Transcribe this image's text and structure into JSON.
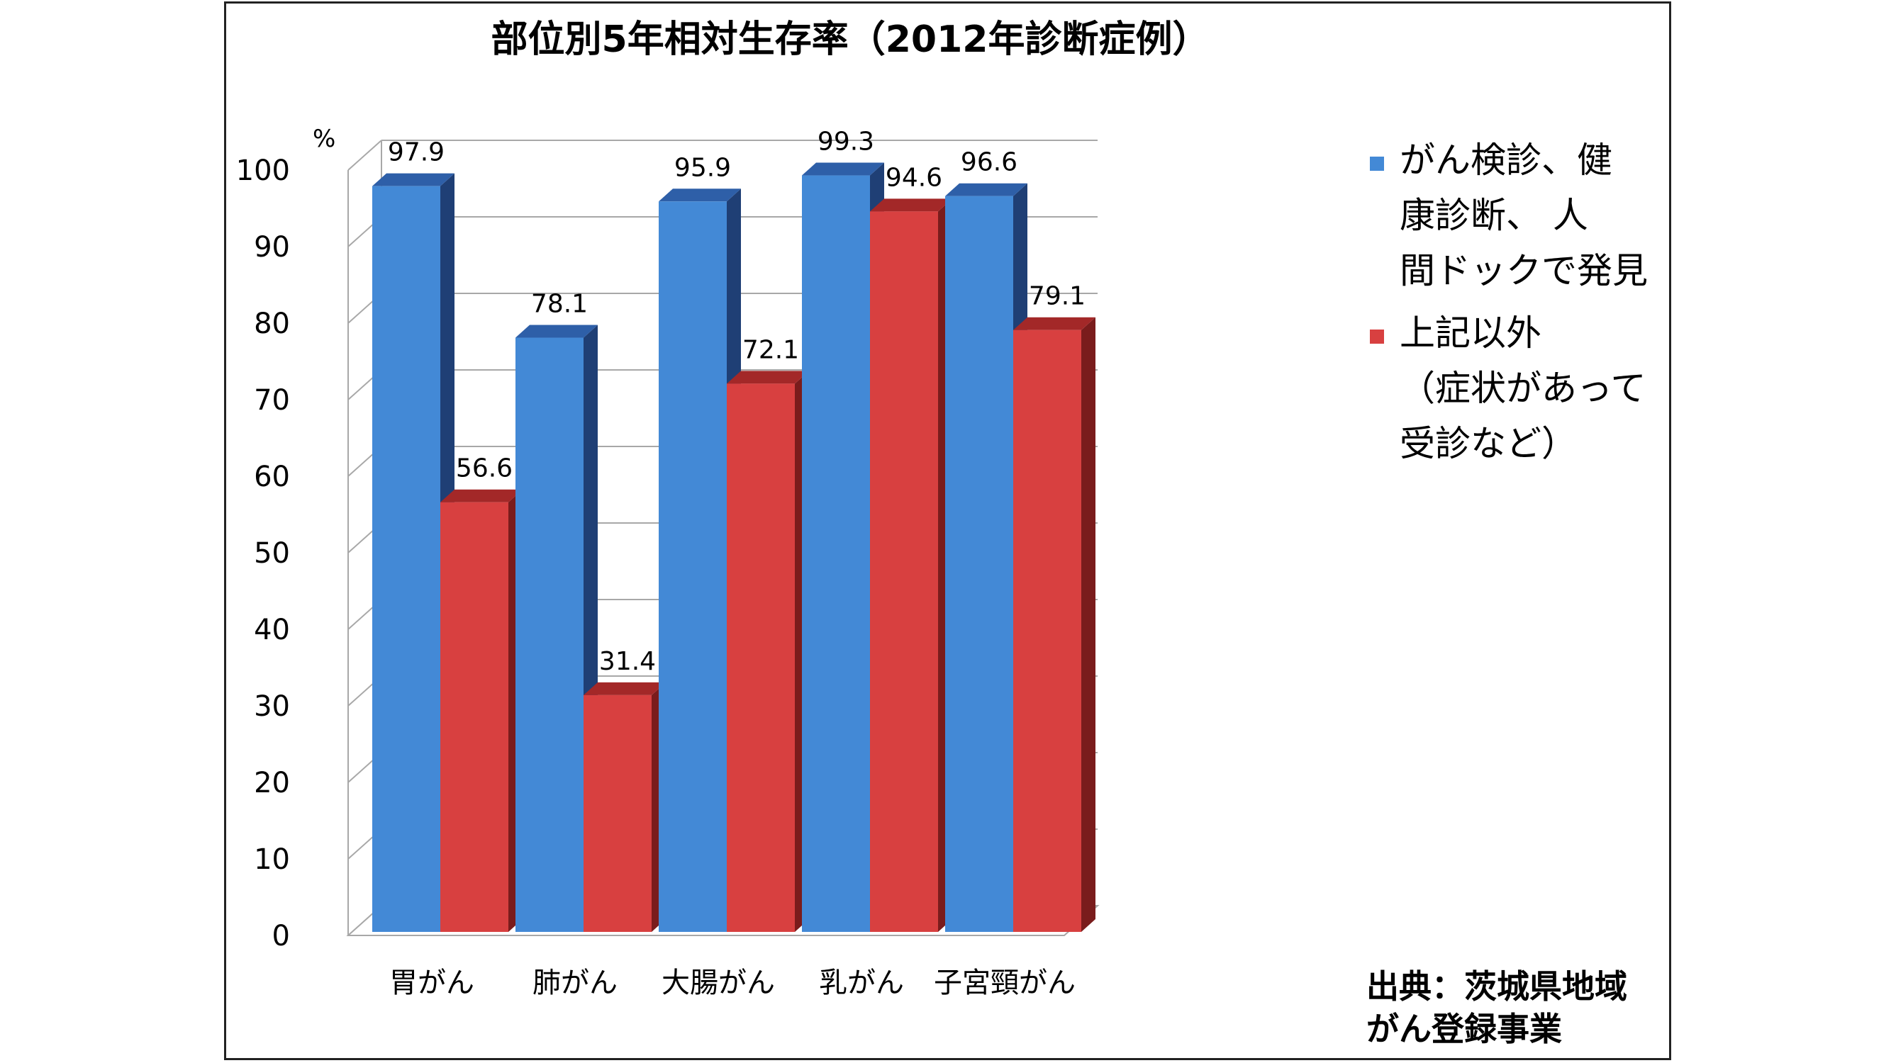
{
  "chart_data": {
    "type": "bar",
    "title": "部位別5年相対生存率（2012年診断症例）",
    "ylabel": "%",
    "ylim": [
      0,
      100
    ],
    "yticks": [
      0,
      10,
      20,
      30,
      40,
      50,
      60,
      70,
      80,
      90,
      100
    ],
    "categories": [
      "胃がん",
      "肺がん",
      "大腸がん",
      "乳がん",
      "子宮頸がん"
    ],
    "series": [
      {
        "name": "がん検診、健康診断、 人間ドックで発見",
        "values": [
          97.9,
          78.1,
          95.9,
          99.3,
          96.6
        ]
      },
      {
        "name": "上記以外（症状があって受診など）",
        "values": [
          56.6,
          31.4,
          72.1,
          94.6,
          79.1
        ]
      }
    ],
    "legend_lines": [
      [
        "がん検診、健",
        "康診断、 人",
        "間ドックで発見"
      ],
      [
        "上記以外",
        "（症状があって",
        "受診など）"
      ]
    ],
    "legend_position": "right",
    "grid": true,
    "colors": {
      "series0_front": "#4389d6",
      "series0_top": "#2e5fa8",
      "series0_side": "#1f3f75",
      "series1_front": "#d84040",
      "series1_top": "#a32828",
      "series1_side": "#7a1c1c",
      "grid": "#a8a8a8"
    },
    "source_lines": [
      "出典：茨城県地域",
      "がん登録事業"
    ]
  }
}
